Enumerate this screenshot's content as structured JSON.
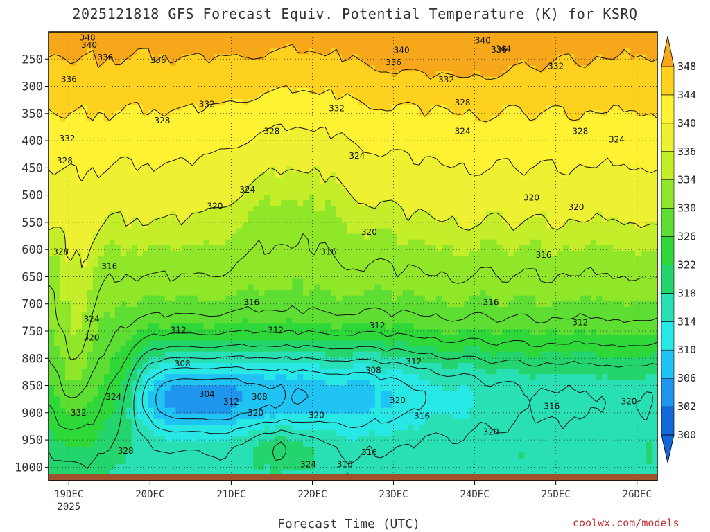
{
  "chart_data": {
    "type": "heatmap",
    "title": "2025121818 GFS Forecast Equiv. Potential Temperature (K) for KSRQ",
    "xlabel": "Forecast Time (UTC)",
    "ylabel": "",
    "x_ticks": [
      "19DEC",
      "20DEC",
      "21DEC",
      "22DEC",
      "23DEC",
      "24DEC",
      "25DEC",
      "26DEC"
    ],
    "x_year": "2025",
    "x_range_days": [
      18.75,
      26.25
    ],
    "y_ticks": [
      250,
      300,
      350,
      400,
      450,
      500,
      550,
      600,
      650,
      700,
      750,
      800,
      850,
      900,
      950,
      1000
    ],
    "y_range_hpa": [
      200,
      1025
    ],
    "colorbar": {
      "levels": [
        300,
        302,
        306,
        310,
        314,
        318,
        322,
        326,
        330,
        334,
        336,
        340,
        344,
        348
      ],
      "colors": [
        "#1268d8",
        "#1e96ee",
        "#20c4f4",
        "#28e8e6",
        "#28e0b4",
        "#24d46c",
        "#2ed838",
        "#5ede32",
        "#90e628",
        "#c4ee2a",
        "#eef032",
        "#fff233",
        "#fdd11e",
        "#f6a81a"
      ]
    },
    "contour_labels": [
      {
        "text": "348",
        "day": 19.23,
        "p": 211
      },
      {
        "text": "340",
        "day": 19.25,
        "p": 224
      },
      {
        "text": "340",
        "day": 23.1,
        "p": 234
      },
      {
        "text": "340",
        "day": 24.1,
        "p": 216
      },
      {
        "text": "344",
        "day": 24.35,
        "p": 231
      },
      {
        "text": "336",
        "day": 19.45,
        "p": 247
      },
      {
        "text": "336",
        "day": 19.0,
        "p": 287
      },
      {
        "text": "336",
        "day": 20.1,
        "p": 252
      },
      {
        "text": "336",
        "day": 23.0,
        "p": 256
      },
      {
        "text": "336",
        "day": 24.3,
        "p": 233
      },
      {
        "text": "332",
        "day": 25.0,
        "p": 263
      },
      {
        "text": "332",
        "day": 20.7,
        "p": 333
      },
      {
        "text": "332",
        "day": 22.3,
        "p": 341
      },
      {
        "text": "332",
        "day": 23.65,
        "p": 288
      },
      {
        "text": "332",
        "day": 18.98,
        "p": 396
      },
      {
        "text": "328",
        "day": 20.15,
        "p": 363
      },
      {
        "text": "328",
        "day": 21.5,
        "p": 383
      },
      {
        "text": "328",
        "day": 23.85,
        "p": 330
      },
      {
        "text": "328",
        "day": 25.3,
        "p": 383
      },
      {
        "text": "328",
        "day": 18.95,
        "p": 437
      },
      {
        "text": "328",
        "day": 18.9,
        "p": 604
      },
      {
        "text": "324",
        "day": 23.85,
        "p": 383
      },
      {
        "text": "324",
        "day": 22.55,
        "p": 428
      },
      {
        "text": "324",
        "day": 21.2,
        "p": 490
      },
      {
        "text": "324",
        "day": 25.75,
        "p": 398
      },
      {
        "text": "324",
        "day": 19.28,
        "p": 728
      },
      {
        "text": "324",
        "day": 19.55,
        "p": 871
      },
      {
        "text": "324",
        "day": 21.95,
        "p": 995
      },
      {
        "text": "320",
        "day": 20.8,
        "p": 520
      },
      {
        "text": "320",
        "day": 22.7,
        "p": 568
      },
      {
        "text": "320",
        "day": 24.7,
        "p": 505
      },
      {
        "text": "320",
        "day": 25.25,
        "p": 522
      },
      {
        "text": "320",
        "day": 19.28,
        "p": 762
      },
      {
        "text": "320",
        "day": 22.05,
        "p": 905
      },
      {
        "text": "320",
        "day": 23.05,
        "p": 877
      },
      {
        "text": "320",
        "day": 24.2,
        "p": 935
      },
      {
        "text": "320",
        "day": 25.9,
        "p": 879
      },
      {
        "text": "316",
        "day": 19.5,
        "p": 631
      },
      {
        "text": "316",
        "day": 22.2,
        "p": 604
      },
      {
        "text": "316",
        "day": 21.25,
        "p": 697
      },
      {
        "text": "316",
        "day": 24.85,
        "p": 610
      },
      {
        "text": "316",
        "day": 24.2,
        "p": 697
      },
      {
        "text": "316",
        "day": 24.95,
        "p": 888
      },
      {
        "text": "316",
        "day": 23.35,
        "p": 906
      },
      {
        "text": "316",
        "day": 22.4,
        "p": 995
      },
      {
        "text": "316",
        "day": 22.7,
        "p": 973
      },
      {
        "text": "312",
        "day": 20.35,
        "p": 748
      },
      {
        "text": "312",
        "day": 21.55,
        "p": 748
      },
      {
        "text": "312",
        "day": 22.8,
        "p": 740
      },
      {
        "text": "312",
        "day": 23.25,
        "p": 806
      },
      {
        "text": "312",
        "day": 25.3,
        "p": 734
      },
      {
        "text": "312",
        "day": 21.0,
        "p": 880
      },
      {
        "text": "308",
        "day": 20.4,
        "p": 810
      },
      {
        "text": "308",
        "day": 21.35,
        "p": 871
      },
      {
        "text": "308",
        "day": 22.75,
        "p": 822
      },
      {
        "text": "304",
        "day": 20.7,
        "p": 866
      },
      {
        "text": "332",
        "day": 19.12,
        "p": 900
      },
      {
        "text": "328",
        "day": 19.7,
        "p": 970
      },
      {
        "text": "320",
        "day": 21.3,
        "p": 900
      }
    ]
  }
}
